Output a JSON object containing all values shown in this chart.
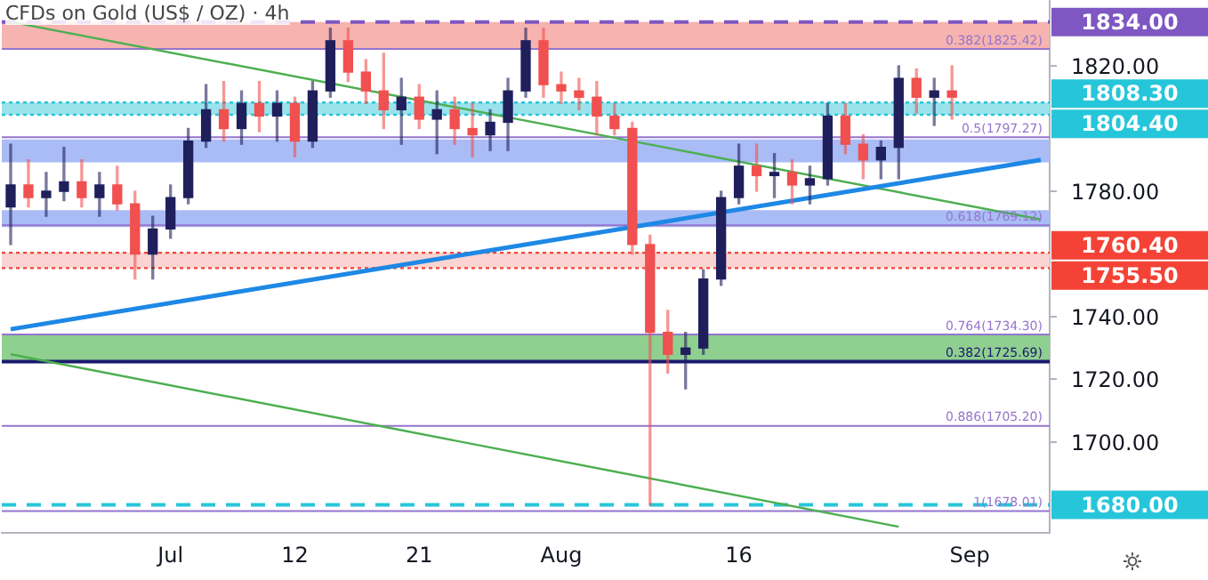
{
  "chart_data": {
    "type": "candlestick",
    "title": "CFDs on Gold (US$ / OZ) · 4h",
    "categories": [
      null,
      null,
      null,
      null,
      null,
      null,
      null,
      null,
      null,
      "Jul",
      null,
      null,
      null,
      null,
      null,
      null,
      "12",
      null,
      null,
      null,
      null,
      null,
      null,
      "21",
      null,
      null,
      null,
      null,
      null,
      null,
      null,
      "Aug",
      null,
      null,
      null,
      null,
      null,
      null,
      null,
      null,
      null,
      "16",
      null,
      null,
      null,
      null,
      null,
      null,
      null,
      null,
      null,
      null,
      null,
      null,
      "Sep",
      null,
      null,
      null,
      null
    ],
    "ohlc": [
      [
        1775,
        1795,
        1763,
        1782
      ],
      [
        1782,
        1790,
        1775,
        1778
      ],
      [
        1778,
        1786,
        1772,
        1780
      ],
      [
        1780,
        1794,
        1777,
        1783
      ],
      [
        1783,
        1790,
        1775,
        1778
      ],
      [
        1778,
        1786,
        1772,
        1782
      ],
      [
        1782,
        1788,
        1774,
        1776
      ],
      [
        1776,
        1780,
        1752,
        1760
      ],
      [
        1760,
        1772,
        1752,
        1768
      ],
      [
        1768,
        1782,
        1765,
        1778
      ],
      [
        1778,
        1800,
        1776,
        1796
      ],
      [
        1796,
        1814,
        1794,
        1806
      ],
      [
        1806,
        1815,
        1796,
        1800
      ],
      [
        1800,
        1812,
        1795,
        1808
      ],
      [
        1808,
        1815,
        1799,
        1804
      ],
      [
        1804,
        1812,
        1796,
        1808
      ],
      [
        1808,
        1810,
        1791,
        1796
      ],
      [
        1796,
        1815,
        1794,
        1812
      ],
      [
        1812,
        1832,
        1810,
        1828
      ],
      [
        1828,
        1832,
        1815,
        1818
      ],
      [
        1818,
        1822,
        1808,
        1812
      ],
      [
        1812,
        1824,
        1800,
        1806
      ],
      [
        1806,
        1816,
        1795,
        1810
      ],
      [
        1810,
        1814,
        1800,
        1803
      ],
      [
        1803,
        1812,
        1792,
        1806
      ],
      [
        1806,
        1810,
        1795,
        1800
      ],
      [
        1800,
        1808,
        1791,
        1798
      ],
      [
        1798,
        1806,
        1793,
        1802
      ],
      [
        1802,
        1816,
        1793,
        1812
      ],
      [
        1812,
        1832,
        1810,
        1828
      ],
      [
        1828,
        1832,
        1810,
        1814
      ],
      [
        1814,
        1818,
        1808,
        1812
      ],
      [
        1812,
        1816,
        1806,
        1810
      ],
      [
        1810,
        1815,
        1798,
        1804
      ],
      [
        1804,
        1808,
        1798,
        1800
      ],
      [
        1800,
        1802,
        1760,
        1763
      ],
      [
        1763,
        1766,
        1680,
        1735
      ],
      [
        1735,
        1742,
        1722,
        1728
      ],
      [
        1728,
        1735,
        1717,
        1730
      ],
      [
        1730,
        1755,
        1728,
        1752
      ],
      [
        1752,
        1780,
        1750,
        1778
      ],
      [
        1778,
        1795,
        1776,
        1788
      ],
      [
        1788,
        1795,
        1780,
        1785
      ],
      [
        1785,
        1792,
        1778,
        1786
      ],
      [
        1786,
        1790,
        1776,
        1782
      ],
      [
        1782,
        1788,
        1776,
        1784
      ],
      [
        1784,
        1808,
        1782,
        1804
      ],
      [
        1804,
        1808,
        1792,
        1795
      ],
      [
        1795,
        1798,
        1784,
        1790
      ],
      [
        1790,
        1796,
        1784,
        1794
      ],
      [
        1794,
        1820,
        1784,
        1816
      ],
      [
        1816,
        1819,
        1805,
        1810
      ],
      [
        1810,
        1816,
        1801,
        1812
      ],
      [
        1812,
        1820,
        1803,
        1810
      ],
      null,
      null,
      null,
      null,
      null
    ],
    "series": [
      {
        "type": "line",
        "color": "#1e88e5",
        "values": [
          1736,
          null,
          null,
          null,
          null,
          null,
          null,
          null,
          null,
          null,
          null,
          null,
          null,
          null,
          null,
          null,
          null,
          null,
          null,
          null,
          null,
          null,
          null,
          null,
          null,
          null,
          null,
          null,
          null,
          null,
          null,
          null,
          null,
          null,
          null,
          null,
          null,
          null,
          null,
          null,
          null,
          null,
          null,
          null,
          null,
          null,
          null,
          null,
          null,
          null,
          null,
          null,
          null,
          null,
          null,
          null,
          null,
          null,
          1790
        ]
      },
      {
        "type": "line",
        "color": "#4caf50",
        "values": [
          1834,
          null,
          null,
          null,
          null,
          null,
          null,
          null,
          null,
          null,
          null,
          null,
          null,
          null,
          null,
          null,
          null,
          null,
          null,
          null,
          null,
          null,
          null,
          null,
          null,
          null,
          null,
          null,
          null,
          null,
          null,
          null,
          null,
          null,
          null,
          null,
          null,
          null,
          null,
          null,
          null,
          null,
          null,
          null,
          null,
          null,
          null,
          null,
          null,
          null,
          null,
          null,
          null,
          null,
          null,
          null,
          null,
          null,
          1771
        ]
      },
      {
        "type": "line",
        "color": "#4caf50",
        "values": [
          1728,
          null,
          null,
          null,
          null,
          null,
          null,
          null,
          null,
          null,
          null,
          null,
          null,
          null,
          null,
          null,
          null,
          null,
          null,
          null,
          null,
          null,
          null,
          null,
          null,
          null,
          null,
          null,
          null,
          null,
          null,
          null,
          null,
          null,
          null,
          null,
          null,
          null,
          null,
          null,
          null,
          null,
          null,
          null,
          null,
          null,
          null,
          null,
          null,
          null,
          1673,
          null,
          null,
          null,
          null,
          null,
          null,
          null,
          null
        ]
      }
    ],
    "ylim": [
      1671,
      1841
    ],
    "yticks": [
      {
        "value": 1700,
        "label": "1700.00"
      },
      {
        "value": 1720,
        "label": "1720.00"
      },
      {
        "value": 1740,
        "label": "1740.00"
      },
      {
        "value": 1780,
        "label": "1780.00"
      },
      {
        "value": 1820,
        "label": "1820.00"
      }
    ],
    "bands": [
      {
        "axis": "y",
        "from": 1825.42,
        "to": 1834,
        "color": "#f6b3b0"
      },
      {
        "axis": "y",
        "from": 1804.4,
        "to": 1808.3,
        "color": "#9be3ec"
      },
      {
        "axis": "y",
        "from": 1789.2,
        "to": 1796.5,
        "color": "#a9bcf5"
      },
      {
        "axis": "y",
        "from": 1768.6,
        "to": 1774,
        "color": "#a9bcf5"
      },
      {
        "axis": "y",
        "from": 1755.5,
        "to": 1760.4,
        "color": "#fad4d2"
      },
      {
        "axis": "y",
        "from": 1725.69,
        "to": 1734.3,
        "color": "#8fcf8f"
      }
    ],
    "ref_lines": [
      {
        "axis": "y",
        "value": 1834,
        "label": "1834.00",
        "color": "#7e57c2",
        "line_style": "dashed"
      },
      {
        "axis": "y",
        "value": 1808.3,
        "label": "1808.30",
        "color": "#26c6da",
        "line_style": "dotted"
      },
      {
        "axis": "y",
        "value": 1804.4,
        "label": "1804.40",
        "color": "#26c6da",
        "line_style": "dotted"
      },
      {
        "axis": "y",
        "value": 1760.4,
        "label": "1760.40",
        "color": "#f44336",
        "line_style": "dotted"
      },
      {
        "axis": "y",
        "value": 1755.5,
        "label": "1755.50",
        "color": "#f44336",
        "line_style": "dotted"
      },
      {
        "axis": "y",
        "value": 1680,
        "label": "1680.00",
        "color": "#26c6da",
        "line_style": "dashed"
      },
      {
        "axis": "y",
        "value": 1825.42,
        "label": "0.382(1825.42)",
        "color": "#9575cd",
        "line_style": "solid"
      },
      {
        "axis": "y",
        "value": 1797.27,
        "label": "0.5(1797.27)",
        "color": "#9575cd",
        "line_style": "solid"
      },
      {
        "axis": "y",
        "value": 1769.12,
        "label": "0.618(1769.12)",
        "color": "#9575cd",
        "line_style": "solid"
      },
      {
        "axis": "y",
        "value": 1734.3,
        "label": "0.764(1734.30)",
        "color": "#9575cd",
        "line_style": "solid"
      },
      {
        "axis": "y",
        "value": 1725.69,
        "label": "0.382(1725.69)",
        "color": "#1a1a6e",
        "line_style": "solid"
      },
      {
        "axis": "y",
        "value": 1705.2,
        "label": "0.886(1705.20)",
        "color": "#9575cd",
        "line_style": "solid"
      },
      {
        "axis": "y",
        "value": 1678.01,
        "label": "1(1678.01)",
        "color": "#9575cd",
        "line_style": "solid"
      }
    ],
    "grid": false,
    "legend": false
  }
}
